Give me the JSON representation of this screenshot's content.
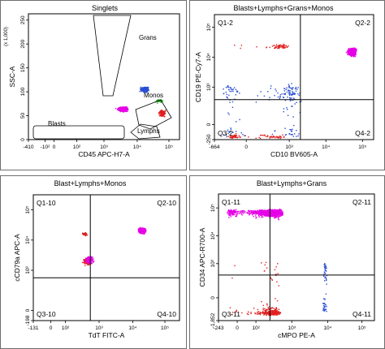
{
  "chart_data": [
    {
      "type": "scatter",
      "title": "Singlets",
      "xlabel": "CD45 APC-H7-A",
      "ylabel": "SSC-A",
      "y_scale_label": "(x 1,000)",
      "x_scale": "biexponential",
      "x_ticks": [
        "-410",
        "-10²",
        "0",
        "10²",
        "10³",
        "10⁴",
        "10⁵"
      ],
      "y_ticks": [
        "0",
        "50",
        "100",
        "150",
        "200",
        "250"
      ],
      "xlim": [
        -410,
        262144
      ],
      "ylim": [
        0,
        262
      ],
      "gates": [
        "Grans",
        "Monos",
        "Lymphs",
        "Blasts"
      ],
      "populations": [
        {
          "name": "Blasts",
          "color": "#e600e6",
          "x_range": [
            -60,
            2000
          ],
          "y_range": [
            10,
            32
          ]
        },
        {
          "name": "Grans",
          "color": "#2a4fd6",
          "x_range": [
            1200,
            15000
          ],
          "y_range": [
            75,
            235
          ]
        },
        {
          "name": "Monos",
          "color": "#22a822",
          "x_range": [
            8000,
            60000
          ],
          "y_range": [
            25,
            70
          ]
        },
        {
          "name": "Lymphs",
          "color": "#e02020",
          "x_range": [
            15000,
            80000
          ],
          "y_range": [
            3,
            25
          ]
        }
      ]
    },
    {
      "type": "scatter",
      "title": "Blasts+Lymphs+Grans+Monos",
      "xlabel": "CD10 BV605-A",
      "ylabel": "CD19 PE-Cy7-A",
      "x_ticks": [
        "-664",
        "0",
        "10³",
        "10⁴",
        "10⁵"
      ],
      "y_ticks": [
        "-250",
        "0",
        "10³",
        "10⁴",
        "10⁵"
      ],
      "quadrants": [
        "Q1-2",
        "Q2-2",
        "Q3-2",
        "Q4-2"
      ],
      "populations": [
        {
          "color": "#e600e6",
          "x_range": [
            4000,
            60000
          ],
          "y_range": [
            500,
            8000
          ]
        },
        {
          "color": "#2a4fd6",
          "x_range": [
            -300,
            400
          ],
          "y_range": [
            -150,
            200
          ]
        },
        {
          "color": "#e02020",
          "x_range": [
            -100,
            100
          ],
          "y_range": [
            -200,
            50
          ]
        },
        {
          "color": "#e02020",
          "x_range": [
            -50,
            100
          ],
          "y_range": [
            3000,
            12000
          ]
        }
      ]
    },
    {
      "type": "scatter",
      "title": "Blast+Lymphs+Monos",
      "xlabel": "TdT FITC-A",
      "ylabel": "cCD79a APC-A",
      "x_ticks": [
        "-131",
        "0",
        "10²",
        "10³",
        "10⁴",
        "10⁵"
      ],
      "y_ticks": [
        "-198",
        "0",
        "10³",
        "10⁴",
        "10⁵"
      ],
      "quadrants": [
        "Q1-10",
        "Q2-10",
        "Q3-10",
        "Q4-10"
      ],
      "populations": [
        {
          "color": "#e600e6",
          "x_range": [
            2000,
            12000
          ],
          "y_range": [
            2000,
            10000
          ]
        },
        {
          "color": "#e02020",
          "x_range": [
            5,
            60
          ],
          "y_range": [
            30,
            400
          ]
        },
        {
          "color": "#e02020",
          "x_range": [
            10,
            40
          ],
          "y_range": [
            2000,
            6000
          ]
        },
        {
          "color": "#e600e6",
          "x_range": [
            3,
            80
          ],
          "y_range": [
            20,
            500
          ]
        }
      ]
    },
    {
      "type": "scatter",
      "title": "Blast+Lymphs+Grans",
      "xlabel": "cMPO PE-A",
      "ylabel": "CD34 APC-R700-A",
      "x_ticks": [
        "-243",
        "0",
        "10²",
        "10³",
        "10⁴",
        "10⁵"
      ],
      "y_ticks": [
        "-1,852",
        "0",
        "10³",
        "10⁴",
        "10⁵"
      ],
      "quadrants": [
        "Q1-11",
        "Q2-11",
        "Q3-11",
        "Q4-11"
      ],
      "populations": [
        {
          "color": "#e600e6",
          "x_range": [
            -60,
            100
          ],
          "y_range": [
            50,
            60000
          ]
        },
        {
          "color": "#e02020",
          "x_range": [
            -40,
            80
          ],
          "y_range": [
            -500,
            300
          ]
        },
        {
          "color": "#2a4fd6",
          "x_range": [
            1500,
            4000
          ],
          "y_range": [
            -200,
            200
          ]
        }
      ]
    }
  ]
}
